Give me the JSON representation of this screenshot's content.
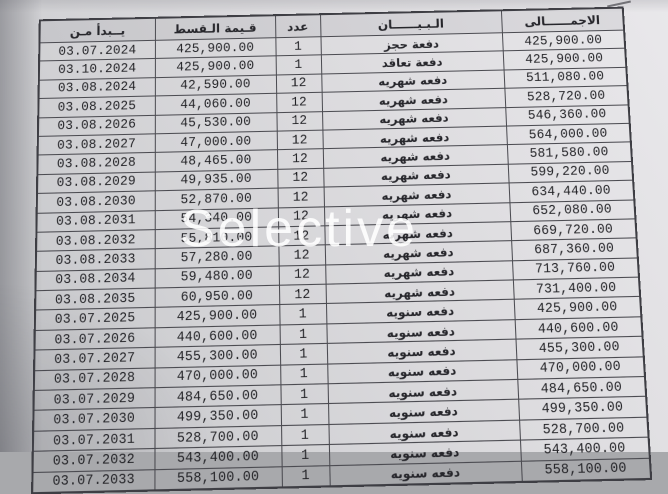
{
  "watermark": "Selective",
  "table": {
    "headers": {
      "start_date": "يــبدأ مـن",
      "installment_value": "قـيمة الـقسط",
      "count": "عدد",
      "description": "الـبـيــــــان",
      "total": "الاجمــــــالى"
    },
    "rows": [
      {
        "start_date": "03.07.2024",
        "installment": "425,900.00",
        "count": "1",
        "description": "دفعة حجز",
        "total": "425,900.00"
      },
      {
        "start_date": "03.10.2024",
        "installment": "425,900.00",
        "count": "1",
        "description": "دفعة تعاقد",
        "total": "425,900.00"
      },
      {
        "start_date": "03.08.2024",
        "installment": "42,590.00",
        "count": "12",
        "description": "دفعه شهريه",
        "total": "511,080.00"
      },
      {
        "start_date": "03.08.2025",
        "installment": "44,060.00",
        "count": "12",
        "description": "دفعه شهريه",
        "total": "528,720.00"
      },
      {
        "start_date": "03.08.2026",
        "installment": "45,530.00",
        "count": "12",
        "description": "دفعه شهريه",
        "total": "546,360.00"
      },
      {
        "start_date": "03.08.2027",
        "installment": "47,000.00",
        "count": "12",
        "description": "دفعه شهريه",
        "total": "564,000.00"
      },
      {
        "start_date": "03.08.2028",
        "installment": "48,465.00",
        "count": "12",
        "description": "دفعه شهريه",
        "total": "581,580.00"
      },
      {
        "start_date": "03.08.2029",
        "installment": "49,935.00",
        "count": "12",
        "description": "دفعه شهريه",
        "total": "599,220.00"
      },
      {
        "start_date": "03.08.2030",
        "installment": "52,870.00",
        "count": "12",
        "description": "دفعه شهريه",
        "total": "634,440.00"
      },
      {
        "start_date": "03.08.2031",
        "installment": "54,340.00",
        "count": "12",
        "description": "دفعه شهريه",
        "total": "652,080.00"
      },
      {
        "start_date": "03.08.2032",
        "installment": "55,810.00",
        "count": "12",
        "description": "دفعه شهريه",
        "total": "669,720.00"
      },
      {
        "start_date": "03.08.2033",
        "installment": "57,280.00",
        "count": "12",
        "description": "دفعه شهريه",
        "total": "687,360.00"
      },
      {
        "start_date": "03.08.2034",
        "installment": "59,480.00",
        "count": "12",
        "description": "دفعه شهريه",
        "total": "713,760.00"
      },
      {
        "start_date": "03.08.2035",
        "installment": "60,950.00",
        "count": "12",
        "description": "دفعه شهريه",
        "total": "731,400.00"
      },
      {
        "start_date": "03.07.2025",
        "installment": "425,900.00",
        "count": "1",
        "description": "دفعه سنويه",
        "total": "425,900.00"
      },
      {
        "start_date": "03.07.2026",
        "installment": "440,600.00",
        "count": "1",
        "description": "دفعه سنويه",
        "total": "440,600.00"
      },
      {
        "start_date": "03.07.2027",
        "installment": "455,300.00",
        "count": "1",
        "description": "دفعه سنويه",
        "total": "455,300.00"
      },
      {
        "start_date": "03.07.2028",
        "installment": "470,000.00",
        "count": "1",
        "description": "دفعه سنويه",
        "total": "470,000.00"
      },
      {
        "start_date": "03.07.2029",
        "installment": "484,650.00",
        "count": "1",
        "description": "دفعه سنويه",
        "total": "484,650.00"
      },
      {
        "start_date": "03.07.2030",
        "installment": "499,350.00",
        "count": "1",
        "description": "دفعه سنويه",
        "total": "499,350.00"
      },
      {
        "start_date": "03.07.2031",
        "installment": "528,700.00",
        "count": "1",
        "description": "دفعه سنويه",
        "total": "528,700.00"
      },
      {
        "start_date": "03.07.2032",
        "installment": "543,400.00",
        "count": "1",
        "description": "دفعه سنويه",
        "total": "543,400.00"
      },
      {
        "start_date": "03.07.2033",
        "installment": "558,100.00",
        "count": "1",
        "description": "دفعه سنويه",
        "total": "558,100.00"
      }
    ]
  },
  "colors": {
    "paper_light": "#e9e8eb",
    "paper_dark": "#c2c3c6",
    "table_border": "#4b4b51",
    "text": "#222226",
    "watermark": "rgba(255,255,255,0.88)"
  }
}
